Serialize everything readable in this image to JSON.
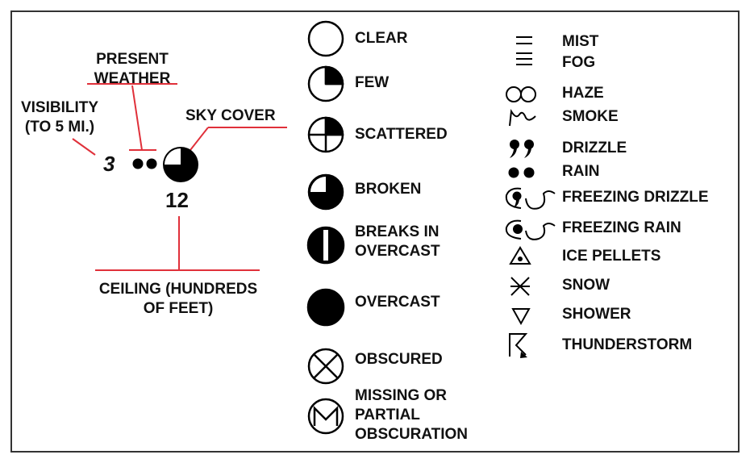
{
  "station_model": {
    "present_weather_label": "PRESENT\nWEATHER",
    "visibility_label": "VISIBILITY\n(TO 5 MI.)",
    "sky_cover_label": "SKY COVER",
    "visibility_value": "3",
    "ceiling_value": "12",
    "ceiling_label": "CEILING (HUNDREDS\nOF FEET)",
    "accent_color": "#e0303a"
  },
  "sky_cover": [
    {
      "label": "CLEAR",
      "icon": "clear-circle-icon"
    },
    {
      "label": "FEW",
      "icon": "few-circle-icon"
    },
    {
      "label": "SCATTERED",
      "icon": "scattered-circle-icon"
    },
    {
      "label": "BROKEN",
      "icon": "broken-circle-icon"
    },
    {
      "label": "BREAKS IN\nOVERCAST",
      "icon": "breaks-in-overcast-icon"
    },
    {
      "label": "OVERCAST",
      "icon": "overcast-circle-icon"
    },
    {
      "label": "OBSCURED",
      "icon": "obscured-circle-icon"
    },
    {
      "label": "MISSING OR\nPARTIAL\nOBSCURATION",
      "icon": "missing-circle-icon"
    }
  ],
  "weather": [
    {
      "label": "MIST",
      "icon": "mist-icon"
    },
    {
      "label": "FOG",
      "icon": "fog-icon"
    },
    {
      "label": "HAZE",
      "icon": "haze-icon"
    },
    {
      "label": "SMOKE",
      "icon": "smoke-icon"
    },
    {
      "label": "DRIZZLE",
      "icon": "drizzle-icon"
    },
    {
      "label": "RAIN",
      "icon": "rain-icon"
    },
    {
      "label": "FREEZING DRIZZLE",
      "icon": "freezing-drizzle-icon"
    },
    {
      "label": "FREEZING RAIN",
      "icon": "freezing-rain-icon"
    },
    {
      "label": "ICE PELLETS",
      "icon": "ice-pellets-icon"
    },
    {
      "label": "SNOW",
      "icon": "snow-icon"
    },
    {
      "label": "SHOWER",
      "icon": "shower-icon"
    },
    {
      "label": "THUNDERSTORM",
      "icon": "thunderstorm-icon"
    }
  ]
}
